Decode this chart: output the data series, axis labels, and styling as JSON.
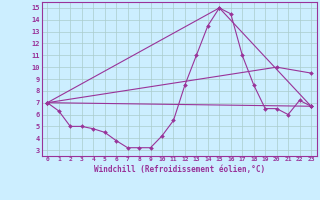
{
  "xlabel": "Windchill (Refroidissement éolien,°C)",
  "bg_color": "#cceeff",
  "line_color": "#993399",
  "grid_color": "#aacccc",
  "xlim": [
    -0.5,
    23.5
  ],
  "ylim": [
    2.5,
    15.5
  ],
  "xticks": [
    0,
    1,
    2,
    3,
    4,
    5,
    6,
    7,
    8,
    9,
    10,
    11,
    12,
    13,
    14,
    15,
    16,
    17,
    18,
    19,
    20,
    21,
    22,
    23
  ],
  "yticks": [
    3,
    4,
    5,
    6,
    7,
    8,
    9,
    10,
    11,
    12,
    13,
    14,
    15
  ],
  "line1_x": [
    0,
    1,
    2,
    3,
    4,
    5,
    6,
    7,
    8,
    9,
    10,
    11,
    12,
    13,
    14,
    15,
    16,
    17,
    18,
    19,
    20,
    21,
    22,
    23
  ],
  "line1_y": [
    7.0,
    6.3,
    5.0,
    5.0,
    4.8,
    4.5,
    3.8,
    3.2,
    3.2,
    3.2,
    4.2,
    5.5,
    8.5,
    11.0,
    13.5,
    15.0,
    14.5,
    11.0,
    8.5,
    6.5,
    6.5,
    6.0,
    7.2,
    6.7
  ],
  "line2_x": [
    0,
    15,
    23
  ],
  "line2_y": [
    7.0,
    15.0,
    6.7
  ],
  "line3_x": [
    0,
    20,
    23
  ],
  "line3_y": [
    7.0,
    10.0,
    9.5
  ],
  "line4_x": [
    0,
    23
  ],
  "line4_y": [
    7.0,
    6.7
  ]
}
